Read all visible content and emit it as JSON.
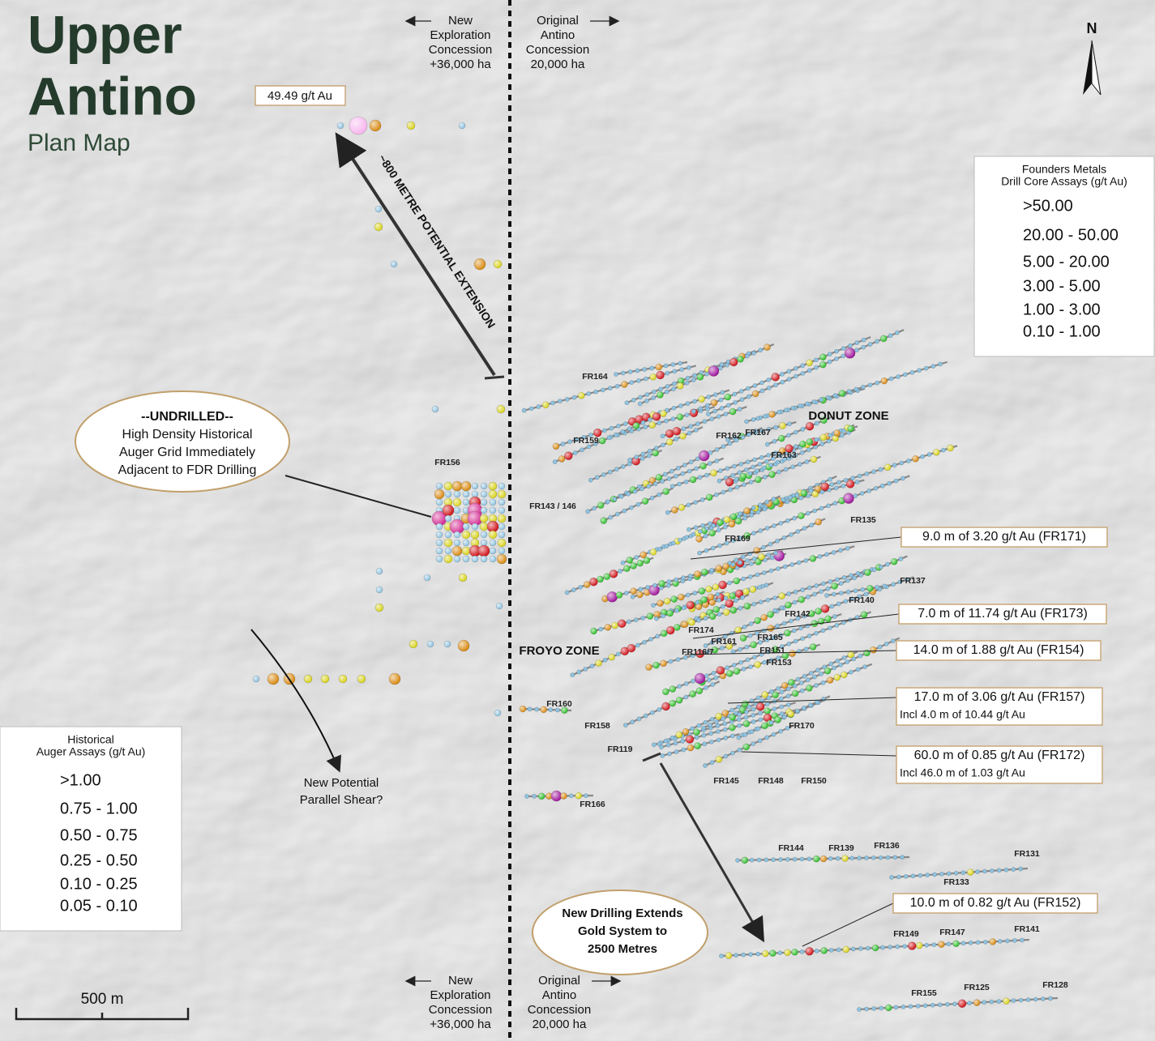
{
  "title": [
    "Upper",
    "Antino"
  ],
  "subtitle": "Plan Map",
  "north": "N",
  "concessions": {
    "new": [
      "New",
      "Exploration",
      "Concession",
      "+36,000 ha"
    ],
    "original": [
      "Original",
      "Antino",
      "Concession",
      "20,000 ha"
    ]
  },
  "callouts": {
    "peak_auger": "49.49 g/t Au",
    "extension": "~800 METRE POTENTIAL EXTENSION",
    "undrilled": [
      "--UNDRILLED--",
      "High Density Historical",
      "Auger Grid Immediately",
      "Adjacent to FDR Drilling"
    ],
    "parallel_shear": [
      "New Potential",
      "Parallel Shear?"
    ],
    "extends": [
      "New Drilling Extends",
      "Gold System to",
      "2500 Metres"
    ]
  },
  "zones": [
    "DONUT ZONE",
    "FROYO ZONE"
  ],
  "intercepts": [
    {
      "text": "9.0 m of 3.20 g/t Au (FR171)"
    },
    {
      "text": "7.0 m of 11.74 g/t Au (FR173)"
    },
    {
      "text": "14.0 m of 1.88 g/t Au (FR154)"
    },
    {
      "text": "17.0 m of 3.06 g/t Au (FR157)",
      "incl": "Incl 4.0 m of 10.44 g/t Au"
    },
    {
      "text": "60.0 m of 0.85 g/t Au (FR172)",
      "incl": "Incl 46.0 m of 1.03 g/t Au"
    },
    {
      "text": "10.0 m of 0.82 g/t Au (FR152)"
    }
  ],
  "holes": [
    "FR164",
    "FR159",
    "FR162",
    "FR167",
    "FR163",
    "FR156",
    "FR143 / 146",
    "FR135",
    "FR169",
    "FR137",
    "FR140",
    "FR142",
    "FR174",
    "FR165",
    "FR161",
    "FR116/7",
    "FR151",
    "FR153",
    "FR160",
    "FR158",
    "FR170",
    "FR119",
    "FR145",
    "FR148",
    "FR150",
    "FR166",
    "FR144",
    "FR139",
    "FR136",
    "FR131",
    "FR133",
    "FR149",
    "FR147",
    "FR141",
    "FR155",
    "FR125",
    "FR128"
  ],
  "legend_founders": {
    "title": [
      "Founders Metals",
      "Drill Core Assays (g/t Au)"
    ],
    "items": [
      ">50.00",
      "20.00 - 50.00",
      "5.00 - 20.00",
      "3.00 - 5.00",
      "1.00 - 3.00",
      "0.10 - 1.00"
    ]
  },
  "legend_auger": {
    "title": [
      "Historical",
      "Auger Assays (g/t Au)"
    ],
    "items": [
      ">1.00",
      "0.75 - 1.00",
      "0.50 - 0.75",
      "0.25 - 0.50",
      "0.10 - 0.25",
      "0.05 - 0.10"
    ]
  },
  "scale": "500 m"
}
